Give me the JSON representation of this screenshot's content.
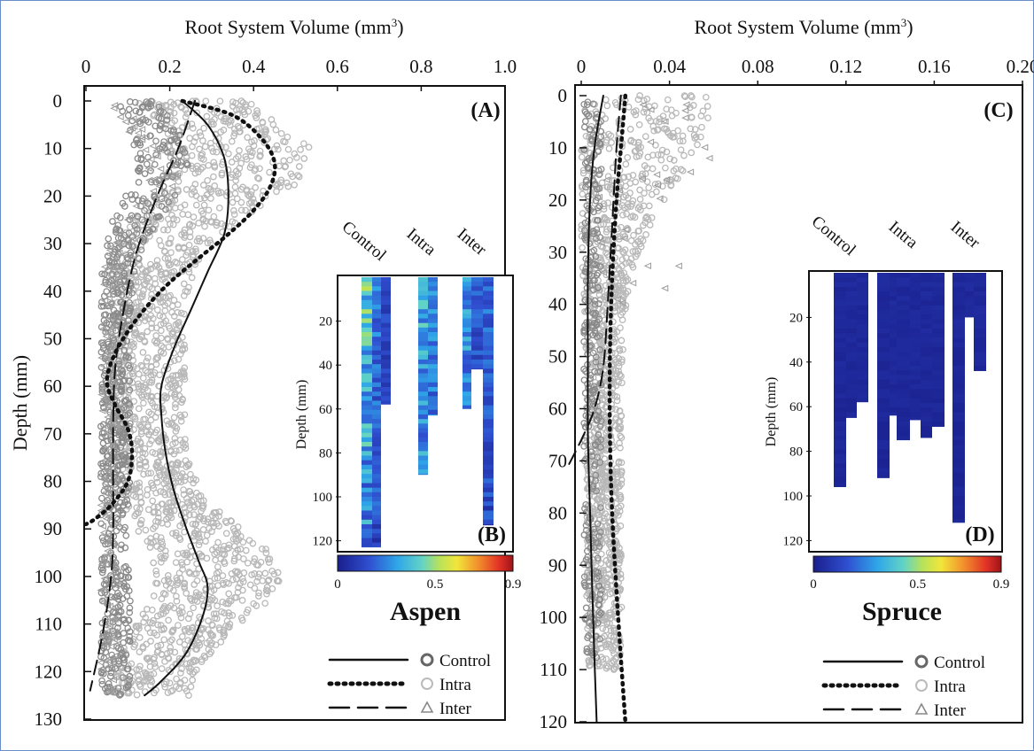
{
  "chart_data": [
    {
      "panel": "(A)",
      "species": "Aspen",
      "type": "scatter",
      "xlabel_text": "Root System Volume (mm",
      "xlabel_sup": "3",
      "xlabel_tail": ")",
      "ylabel": "Depth (mm)",
      "xlim": [
        0,
        1.0
      ],
      "ylim": [
        130,
        0
      ],
      "x_ticks": [
        "0",
        "0.2",
        "0.4",
        "0.6",
        "0.8",
        "1.0"
      ],
      "y_ticks": [
        "0",
        "10",
        "20",
        "30",
        "40",
        "50",
        "60",
        "70",
        "80",
        "90",
        "100",
        "110",
        "120",
        "130"
      ],
      "series": [
        {
          "name": "Control",
          "line": "solid",
          "curve": [
            [
              0.23,
              0
            ],
            [
              0.29,
              5
            ],
            [
              0.33,
              12
            ],
            [
              0.34,
              20
            ],
            [
              0.33,
              28
            ],
            [
              0.29,
              36
            ],
            [
              0.25,
              44
            ],
            [
              0.21,
              52
            ],
            [
              0.18,
              60
            ],
            [
              0.18,
              66
            ],
            [
              0.19,
              74
            ],
            [
              0.21,
              82
            ],
            [
              0.24,
              90
            ],
            [
              0.27,
              97
            ],
            [
              0.29,
              102
            ],
            [
              0.28,
              108
            ],
            [
              0.24,
              116
            ],
            [
              0.18,
              122
            ],
            [
              0.14,
              125
            ]
          ]
        },
        {
          "name": "Intra",
          "line": "dotted",
          "curve": [
            [
              0.23,
              0
            ],
            [
              0.35,
              3
            ],
            [
              0.42,
              8
            ],
            [
              0.45,
              13
            ],
            [
              0.44,
              18
            ],
            [
              0.4,
              23
            ],
            [
              0.34,
              28
            ],
            [
              0.27,
              33
            ],
            [
              0.19,
              39
            ],
            [
              0.12,
              46
            ],
            [
              0.07,
              53
            ],
            [
              0.05,
              59
            ],
            [
              0.07,
              64
            ],
            [
              0.1,
              69
            ],
            [
              0.11,
              74
            ],
            [
              0.1,
              80
            ],
            [
              0.06,
              85
            ],
            [
              0.02,
              88
            ],
            [
              0.0,
              89
            ]
          ]
        },
        {
          "name": "Inter",
          "line": "dashed",
          "curve": [
            [
              0.26,
              0
            ],
            [
              0.22,
              10
            ],
            [
              0.17,
              20
            ],
            [
              0.12,
              32
            ],
            [
              0.09,
              44
            ],
            [
              0.07,
              56
            ],
            [
              0.065,
              68
            ],
            [
              0.065,
              80
            ],
            [
              0.065,
              90
            ],
            [
              0.06,
              100
            ],
            [
              0.04,
              112
            ],
            [
              0.01,
              124
            ]
          ]
        }
      ]
    },
    {
      "panel": "(B)",
      "type": "heatmap",
      "ylabel": "Depth (mm)",
      "y_ticks": [
        "20",
        "40",
        "60",
        "80",
        "100",
        "120"
      ],
      "ylim": [
        0,
        125
      ],
      "columns": [
        "Control",
        "Intra",
        "Inter"
      ],
      "colorbar_ticks": [
        "0",
        "0.5",
        "0.9"
      ],
      "colorbar_range": [
        0,
        0.9
      ],
      "strips": [
        {
          "group": "Control",
          "max_depth": 123,
          "level": 0.35
        },
        {
          "group": "Control",
          "max_depth": 123,
          "level": 0.2
        },
        {
          "group": "Control",
          "max_depth": 58,
          "level": 0.12
        },
        {
          "group": "Intra",
          "max_depth": 90,
          "level": 0.3
        },
        {
          "group": "Intra",
          "max_depth": 63,
          "level": 0.22
        },
        {
          "group": "Inter",
          "max_depth": 60,
          "level": 0.25
        },
        {
          "group": "Inter",
          "max_depth": 113,
          "level": 0.18
        },
        {
          "group": "Inter",
          "max_depth": 42,
          "level": 0.15
        }
      ]
    },
    {
      "panel": "(C)",
      "species": "Spruce",
      "type": "scatter",
      "xlabel_text": "Root System Volume (mm",
      "xlabel_sup": "3",
      "xlabel_tail": ")",
      "xlim": [
        0,
        0.2
      ],
      "ylim": [
        120,
        0
      ],
      "x_ticks": [
        "0",
        "0.04",
        "0.08",
        "0.12",
        "0.16",
        "0.20"
      ],
      "y_ticks": [
        "0",
        "10",
        "20",
        "30",
        "40",
        "50",
        "60",
        "70",
        "80",
        "90",
        "100",
        "110",
        "120"
      ],
      "series": [
        {
          "name": "Control",
          "line": "solid",
          "curve": [
            [
              0.01,
              0
            ],
            [
              0.006,
              10
            ],
            [
              0.004,
              20
            ],
            [
              0.003,
              35
            ],
            [
              0.003,
              50
            ],
            [
              0.003,
              65
            ],
            [
              0.004,
              80
            ],
            [
              0.005,
              95
            ],
            [
              0.006,
              108
            ],
            [
              0.007,
              120
            ]
          ]
        },
        {
          "name": "Intra",
          "line": "dotted",
          "curve": [
            [
              0.02,
              0
            ],
            [
              0.018,
              10
            ],
            [
              0.016,
              20
            ],
            [
              0.014,
              35
            ],
            [
              0.013,
              50
            ],
            [
              0.013,
              65
            ],
            [
              0.014,
              80
            ],
            [
              0.016,
              95
            ],
            [
              0.018,
              108
            ],
            [
              0.02,
              120
            ]
          ]
        },
        {
          "name": "Inter",
          "line": "dashed",
          "curve": [
            [
              0.018,
              0
            ],
            [
              0.016,
              10
            ],
            [
              0.014,
              25
            ],
            [
              0.012,
              40
            ],
            [
              0.01,
              52
            ],
            [
              0.006,
              60
            ],
            [
              0.0,
              66
            ],
            [
              -0.006,
              71
            ]
          ]
        }
      ]
    },
    {
      "panel": "(D)",
      "type": "heatmap",
      "ylabel": "Depth (mm)",
      "y_ticks": [
        "20",
        "40",
        "60",
        "80",
        "100",
        "120"
      ],
      "ylim": [
        0,
        125
      ],
      "columns": [
        "Control",
        "Intra",
        "Inter"
      ],
      "colorbar_ticks": [
        "0",
        "0.5",
        "0.9"
      ],
      "colorbar_range": [
        0,
        0.9
      ],
      "strips": [
        {
          "group": "Control",
          "max_depth": 96,
          "level": 0.03
        },
        {
          "group": "Control",
          "max_depth": 65,
          "level": 0.03
        },
        {
          "group": "Control",
          "max_depth": 58,
          "level": 0.03
        },
        {
          "group": "Intra",
          "max_depth": 92,
          "level": 0.03
        },
        {
          "group": "Intra",
          "max_depth": 64,
          "level": 0.03
        },
        {
          "group": "Intra",
          "max_depth": 75,
          "level": 0.03
        },
        {
          "group": "Intra",
          "max_depth": 66,
          "level": 0.03
        },
        {
          "group": "Intra",
          "max_depth": 74,
          "level": 0.03
        },
        {
          "group": "Intra",
          "max_depth": 69,
          "level": 0.03
        },
        {
          "group": "Inter",
          "max_depth": 112,
          "level": 0.03
        },
        {
          "group": "Inter",
          "max_depth": 20,
          "level": 0.03
        },
        {
          "group": "Inter",
          "max_depth": 44,
          "level": 0.03
        }
      ]
    }
  ],
  "legend": [
    {
      "name": "Control",
      "line": "solid",
      "marker": "circle-dark"
    },
    {
      "name": "Intra",
      "line": "dotted",
      "marker": "circle-light"
    },
    {
      "name": "Inter",
      "line": "dashed",
      "marker": "triangle"
    }
  ],
  "colors": {
    "frame": "#6a8fc6",
    "points": "#b8b8b8",
    "points_dark": "#8a8a8a"
  }
}
